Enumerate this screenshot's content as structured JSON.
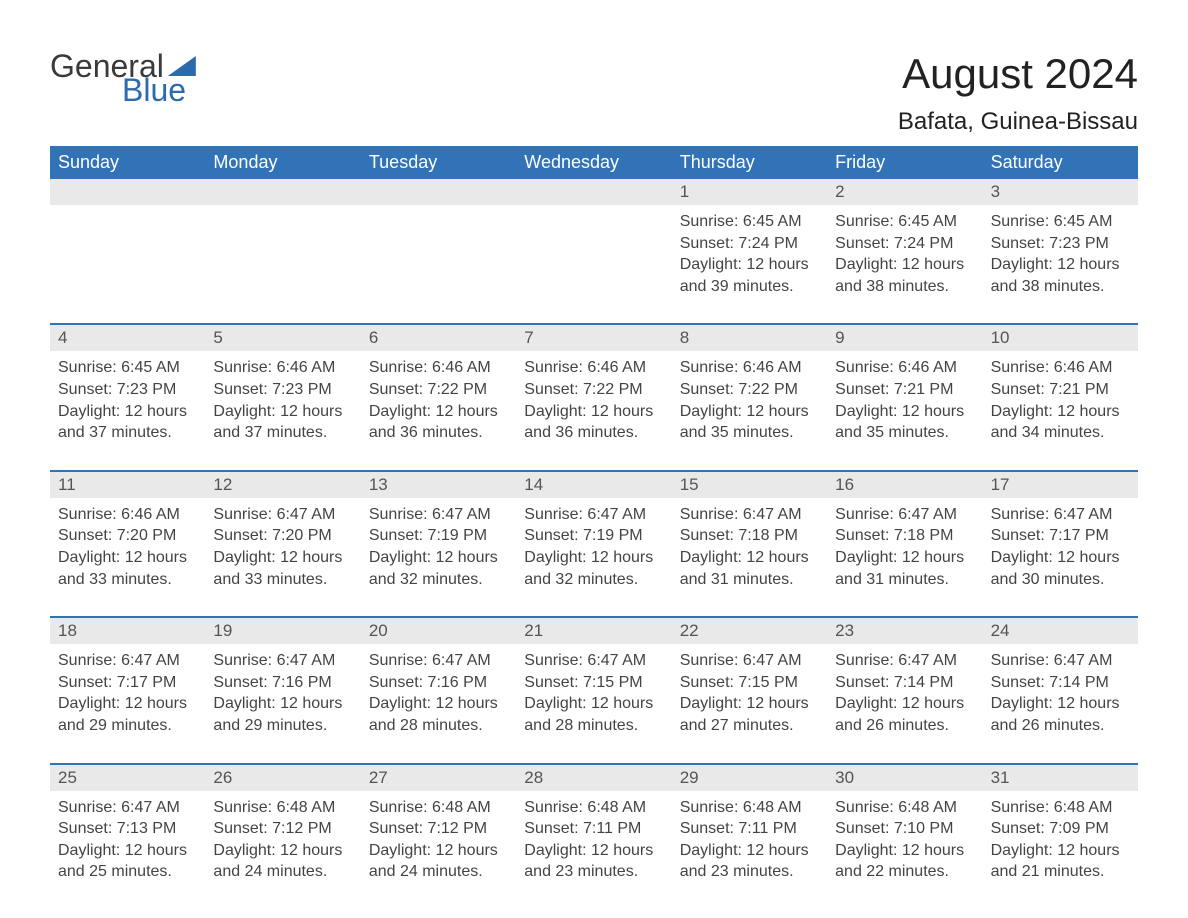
{
  "logo": {
    "word1": "General",
    "word2": "Blue"
  },
  "title": "August 2024",
  "location": "Bafata, Guinea-Bissau",
  "colors": {
    "header_bg": "#3173b6",
    "header_text": "#ffffff",
    "daynum_bg": "#e9e9e9",
    "body_text": "#444444",
    "logo_blue": "#2d6aad",
    "border": "#3173b6"
  },
  "fonts": {
    "title_size": 42,
    "location_size": 24,
    "dayhead_size": 18,
    "cell_size": 16
  },
  "day_names": [
    "Sunday",
    "Monday",
    "Tuesday",
    "Wednesday",
    "Thursday",
    "Friday",
    "Saturday"
  ],
  "weeks": [
    [
      null,
      null,
      null,
      null,
      {
        "n": "1",
        "sunrise": "Sunrise: 6:45 AM",
        "sunset": "Sunset: 7:24 PM",
        "dl1": "Daylight: 12 hours",
        "dl2": "and 39 minutes."
      },
      {
        "n": "2",
        "sunrise": "Sunrise: 6:45 AM",
        "sunset": "Sunset: 7:24 PM",
        "dl1": "Daylight: 12 hours",
        "dl2": "and 38 minutes."
      },
      {
        "n": "3",
        "sunrise": "Sunrise: 6:45 AM",
        "sunset": "Sunset: 7:23 PM",
        "dl1": "Daylight: 12 hours",
        "dl2": "and 38 minutes."
      }
    ],
    [
      {
        "n": "4",
        "sunrise": "Sunrise: 6:45 AM",
        "sunset": "Sunset: 7:23 PM",
        "dl1": "Daylight: 12 hours",
        "dl2": "and 37 minutes."
      },
      {
        "n": "5",
        "sunrise": "Sunrise: 6:46 AM",
        "sunset": "Sunset: 7:23 PM",
        "dl1": "Daylight: 12 hours",
        "dl2": "and 37 minutes."
      },
      {
        "n": "6",
        "sunrise": "Sunrise: 6:46 AM",
        "sunset": "Sunset: 7:22 PM",
        "dl1": "Daylight: 12 hours",
        "dl2": "and 36 minutes."
      },
      {
        "n": "7",
        "sunrise": "Sunrise: 6:46 AM",
        "sunset": "Sunset: 7:22 PM",
        "dl1": "Daylight: 12 hours",
        "dl2": "and 36 minutes."
      },
      {
        "n": "8",
        "sunrise": "Sunrise: 6:46 AM",
        "sunset": "Sunset: 7:22 PM",
        "dl1": "Daylight: 12 hours",
        "dl2": "and 35 minutes."
      },
      {
        "n": "9",
        "sunrise": "Sunrise: 6:46 AM",
        "sunset": "Sunset: 7:21 PM",
        "dl1": "Daylight: 12 hours",
        "dl2": "and 35 minutes."
      },
      {
        "n": "10",
        "sunrise": "Sunrise: 6:46 AM",
        "sunset": "Sunset: 7:21 PM",
        "dl1": "Daylight: 12 hours",
        "dl2": "and 34 minutes."
      }
    ],
    [
      {
        "n": "11",
        "sunrise": "Sunrise: 6:46 AM",
        "sunset": "Sunset: 7:20 PM",
        "dl1": "Daylight: 12 hours",
        "dl2": "and 33 minutes."
      },
      {
        "n": "12",
        "sunrise": "Sunrise: 6:47 AM",
        "sunset": "Sunset: 7:20 PM",
        "dl1": "Daylight: 12 hours",
        "dl2": "and 33 minutes."
      },
      {
        "n": "13",
        "sunrise": "Sunrise: 6:47 AM",
        "sunset": "Sunset: 7:19 PM",
        "dl1": "Daylight: 12 hours",
        "dl2": "and 32 minutes."
      },
      {
        "n": "14",
        "sunrise": "Sunrise: 6:47 AM",
        "sunset": "Sunset: 7:19 PM",
        "dl1": "Daylight: 12 hours",
        "dl2": "and 32 minutes."
      },
      {
        "n": "15",
        "sunrise": "Sunrise: 6:47 AM",
        "sunset": "Sunset: 7:18 PM",
        "dl1": "Daylight: 12 hours",
        "dl2": "and 31 minutes."
      },
      {
        "n": "16",
        "sunrise": "Sunrise: 6:47 AM",
        "sunset": "Sunset: 7:18 PM",
        "dl1": "Daylight: 12 hours",
        "dl2": "and 31 minutes."
      },
      {
        "n": "17",
        "sunrise": "Sunrise: 6:47 AM",
        "sunset": "Sunset: 7:17 PM",
        "dl1": "Daylight: 12 hours",
        "dl2": "and 30 minutes."
      }
    ],
    [
      {
        "n": "18",
        "sunrise": "Sunrise: 6:47 AM",
        "sunset": "Sunset: 7:17 PM",
        "dl1": "Daylight: 12 hours",
        "dl2": "and 29 minutes."
      },
      {
        "n": "19",
        "sunrise": "Sunrise: 6:47 AM",
        "sunset": "Sunset: 7:16 PM",
        "dl1": "Daylight: 12 hours",
        "dl2": "and 29 minutes."
      },
      {
        "n": "20",
        "sunrise": "Sunrise: 6:47 AM",
        "sunset": "Sunset: 7:16 PM",
        "dl1": "Daylight: 12 hours",
        "dl2": "and 28 minutes."
      },
      {
        "n": "21",
        "sunrise": "Sunrise: 6:47 AM",
        "sunset": "Sunset: 7:15 PM",
        "dl1": "Daylight: 12 hours",
        "dl2": "and 28 minutes."
      },
      {
        "n": "22",
        "sunrise": "Sunrise: 6:47 AM",
        "sunset": "Sunset: 7:15 PM",
        "dl1": "Daylight: 12 hours",
        "dl2": "and 27 minutes."
      },
      {
        "n": "23",
        "sunrise": "Sunrise: 6:47 AM",
        "sunset": "Sunset: 7:14 PM",
        "dl1": "Daylight: 12 hours",
        "dl2": "and 26 minutes."
      },
      {
        "n": "24",
        "sunrise": "Sunrise: 6:47 AM",
        "sunset": "Sunset: 7:14 PM",
        "dl1": "Daylight: 12 hours",
        "dl2": "and 26 minutes."
      }
    ],
    [
      {
        "n": "25",
        "sunrise": "Sunrise: 6:47 AM",
        "sunset": "Sunset: 7:13 PM",
        "dl1": "Daylight: 12 hours",
        "dl2": "and 25 minutes."
      },
      {
        "n": "26",
        "sunrise": "Sunrise: 6:48 AM",
        "sunset": "Sunset: 7:12 PM",
        "dl1": "Daylight: 12 hours",
        "dl2": "and 24 minutes."
      },
      {
        "n": "27",
        "sunrise": "Sunrise: 6:48 AM",
        "sunset": "Sunset: 7:12 PM",
        "dl1": "Daylight: 12 hours",
        "dl2": "and 24 minutes."
      },
      {
        "n": "28",
        "sunrise": "Sunrise: 6:48 AM",
        "sunset": "Sunset: 7:11 PM",
        "dl1": "Daylight: 12 hours",
        "dl2": "and 23 minutes."
      },
      {
        "n": "29",
        "sunrise": "Sunrise: 6:48 AM",
        "sunset": "Sunset: 7:11 PM",
        "dl1": "Daylight: 12 hours",
        "dl2": "and 23 minutes."
      },
      {
        "n": "30",
        "sunrise": "Sunrise: 6:48 AM",
        "sunset": "Sunset: 7:10 PM",
        "dl1": "Daylight: 12 hours",
        "dl2": "and 22 minutes."
      },
      {
        "n": "31",
        "sunrise": "Sunrise: 6:48 AM",
        "sunset": "Sunset: 7:09 PM",
        "dl1": "Daylight: 12 hours",
        "dl2": "and 21 minutes."
      }
    ]
  ]
}
